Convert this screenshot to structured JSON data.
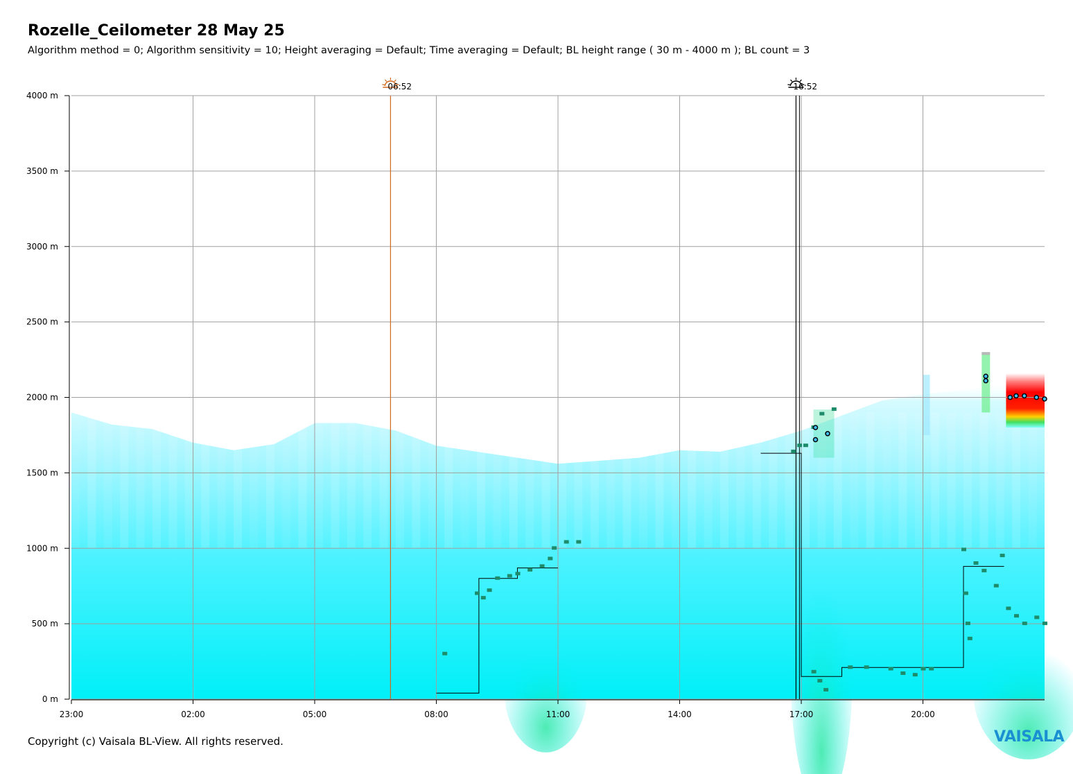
{
  "header": {
    "title": "Rozelle_Ceilometer 28 May 25",
    "subtitle": "Algorithm method = 0; Algorithm sensitivity = 10; Height averaging = Default; Time averaging = Default; BL height range ( 30 m - 4000 m ); BL count = 3"
  },
  "footer": {
    "copyright": "Copyright (c) Vaisala BL-View. All rights reserved.",
    "brand": "VAISALA"
  },
  "chart_data": {
    "type": "heatmap",
    "title": "Rozelle_Ceilometer 28 May 25",
    "xlabel": "",
    "ylabel": "",
    "xlim": [
      -1,
      23
    ],
    "ylim": [
      0,
      4000
    ],
    "x_tick_values": [
      -1,
      2,
      5,
      8,
      11,
      14,
      17,
      20
    ],
    "x_ticks": [
      "23:00",
      "02:00",
      "05:00",
      "08:00",
      "11:00",
      "14:00",
      "17:00",
      "20:00"
    ],
    "y_tick_values": [
      0,
      500,
      1000,
      1500,
      2000,
      2500,
      3000,
      3500,
      4000
    ],
    "y_ticks": [
      "0 m",
      "500 m",
      "1000 m",
      "1500 m",
      "2000 m",
      "2500 m",
      "3000 m",
      "3500 m",
      "4000 m"
    ],
    "grid": true,
    "markers": [
      {
        "label": "06:52",
        "x": 6.87,
        "kind": "sunrise",
        "color": "#d2691e"
      },
      {
        "label": "16:52",
        "x": 16.87,
        "kind": "sunset",
        "color": "#000000"
      }
    ],
    "backscatter_top": [
      [
        -1,
        1900
      ],
      [
        0,
        1820
      ],
      [
        1,
        1790
      ],
      [
        2,
        1700
      ],
      [
        3,
        1650
      ],
      [
        4,
        1690
      ],
      [
        5,
        1830
      ],
      [
        6,
        1830
      ],
      [
        7,
        1780
      ],
      [
        8,
        1680
      ],
      [
        9,
        1640
      ],
      [
        10,
        1600
      ],
      [
        11,
        1560
      ],
      [
        12,
        1580
      ],
      [
        13,
        1600
      ],
      [
        14,
        1650
      ],
      [
        15,
        1640
      ],
      [
        16,
        1700
      ],
      [
        17,
        1780
      ],
      [
        18,
        1880
      ],
      [
        19,
        1980
      ],
      [
        20,
        2020
      ],
      [
        21,
        2050
      ],
      [
        22,
        2080
      ],
      [
        23,
        2100
      ]
    ],
    "bl_height_step": [
      [
        8.0,
        40
      ],
      [
        9.05,
        40
      ],
      [
        9.05,
        800
      ],
      [
        10.0,
        800
      ],
      [
        10.0,
        870
      ],
      [
        11.0,
        870
      ],
      [
        16.0,
        1630
      ],
      [
        17.0,
        1630
      ],
      [
        17.0,
        150
      ],
      [
        18.0,
        150
      ],
      [
        18.0,
        210
      ],
      [
        20.0,
        210
      ],
      [
        21.0,
        210
      ],
      [
        21.0,
        880
      ],
      [
        22.0,
        880
      ]
    ],
    "bl_points": [
      [
        8.2,
        300
      ],
      [
        9.0,
        700
      ],
      [
        9.15,
        670
      ],
      [
        9.3,
        720
      ],
      [
        9.5,
        800
      ],
      [
        9.8,
        815
      ],
      [
        10.0,
        830
      ],
      [
        10.3,
        855
      ],
      [
        10.6,
        880
      ],
      [
        10.8,
        930
      ],
      [
        10.9,
        1000
      ],
      [
        11.2,
        1040
      ],
      [
        11.5,
        1040
      ],
      [
        16.8,
        1640
      ],
      [
        16.95,
        1680
      ],
      [
        17.1,
        1680
      ],
      [
        17.3,
        1800
      ],
      [
        17.5,
        1890
      ],
      [
        17.8,
        1920
      ],
      [
        17.3,
        180
      ],
      [
        17.45,
        120
      ],
      [
        17.6,
        60
      ],
      [
        18.2,
        210
      ],
      [
        18.6,
        210
      ],
      [
        19.2,
        200
      ],
      [
        19.5,
        170
      ],
      [
        19.8,
        160
      ],
      [
        20.0,
        200
      ],
      [
        20.2,
        200
      ],
      [
        21.0,
        990
      ],
      [
        21.05,
        700
      ],
      [
        21.1,
        500
      ],
      [
        21.15,
        400
      ],
      [
        21.3,
        900
      ],
      [
        21.5,
        850
      ],
      [
        21.8,
        750
      ],
      [
        21.95,
        950
      ],
      [
        22.1,
        600
      ],
      [
        22.3,
        550
      ],
      [
        22.5,
        500
      ],
      [
        22.8,
        540
      ],
      [
        23.0,
        500
      ]
    ],
    "cloud_points": [
      [
        17.35,
        1800
      ],
      [
        17.35,
        1720
      ],
      [
        17.65,
        1760
      ],
      [
        21.55,
        2110
      ],
      [
        21.55,
        2140
      ],
      [
        22.15,
        2000
      ],
      [
        22.3,
        2010
      ],
      [
        22.5,
        2010
      ],
      [
        22.8,
        2000
      ],
      [
        23.0,
        1990
      ]
    ]
  }
}
